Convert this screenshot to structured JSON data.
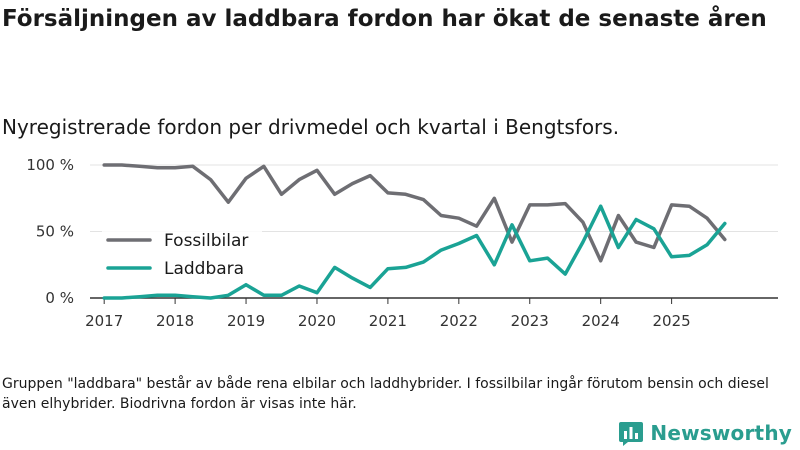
{
  "title": "Försäljningen av laddbara fordon har ökat de senaste åren",
  "subtitle": "Nyregistrerade fordon per drivmedel och kvartal i Bengtsfors.",
  "footnote": "Gruppen \"laddbara\" består av både rena elbilar och laddhybrider. I fossilbilar ingår förutom bensin och diesel även elhybrider. Biodrivna fordon är visas inte här.",
  "brand": {
    "name": "Newsworthy",
    "color": "#2a9d8f",
    "icon": "newsworthy-logo-icon"
  },
  "chart_data": {
    "type": "line",
    "title": "Nyregistrerade fordon per drivmedel och kvartal i Bengtsfors.",
    "xlabel": "",
    "ylabel": "",
    "ylim": [
      0,
      100
    ],
    "y_ticks": [
      0,
      50,
      100
    ],
    "y_tick_labels": [
      "0 %",
      "50 %",
      "100 %"
    ],
    "y_unit": "%",
    "x_ticks": [
      2017,
      2018,
      2019,
      2020,
      2021,
      2022,
      2023,
      2024,
      2025
    ],
    "x_tick_labels": [
      "2017",
      "2018",
      "2019",
      "2020",
      "2021",
      "2022",
      "2023",
      "2024",
      "2025"
    ],
    "xlim": [
      2016.8,
      2026.5
    ],
    "grid": "horizontal",
    "legend_position": "left-middle",
    "x": [
      2017.0,
      2017.25,
      2017.5,
      2017.75,
      2018.0,
      2018.25,
      2018.5,
      2018.75,
      2019.0,
      2019.25,
      2019.5,
      2019.75,
      2020.0,
      2020.25,
      2020.5,
      2020.75,
      2021.0,
      2021.25,
      2021.5,
      2021.75,
      2022.0,
      2022.25,
      2022.5,
      2022.75,
      2023.0,
      2023.25,
      2023.5,
      2023.75,
      2024.0,
      2024.25,
      2024.5,
      2024.75,
      2025.0,
      2025.25,
      2025.5,
      2025.75
    ],
    "series": [
      {
        "name": "Fossilbilar",
        "color": "#6e6e73",
        "values": [
          100,
          100,
          99,
          98,
          98,
          99,
          89,
          72,
          90,
          99,
          78,
          89,
          96,
          78,
          86,
          92,
          79,
          78,
          74,
          62,
          60,
          54,
          75,
          42,
          70,
          70,
          71,
          57,
          28,
          62,
          42,
          38,
          70,
          69,
          60,
          44
        ]
      },
      {
        "name": "Laddbara",
        "color": "#1aa395",
        "values": [
          0,
          0,
          1,
          2,
          2,
          1,
          0,
          2,
          10,
          2,
          2,
          9,
          4,
          23,
          15,
          8,
          22,
          23,
          27,
          36,
          41,
          47,
          25,
          55,
          28,
          30,
          18,
          42,
          69,
          38,
          59,
          52,
          31,
          32,
          40,
          56
        ]
      }
    ]
  }
}
